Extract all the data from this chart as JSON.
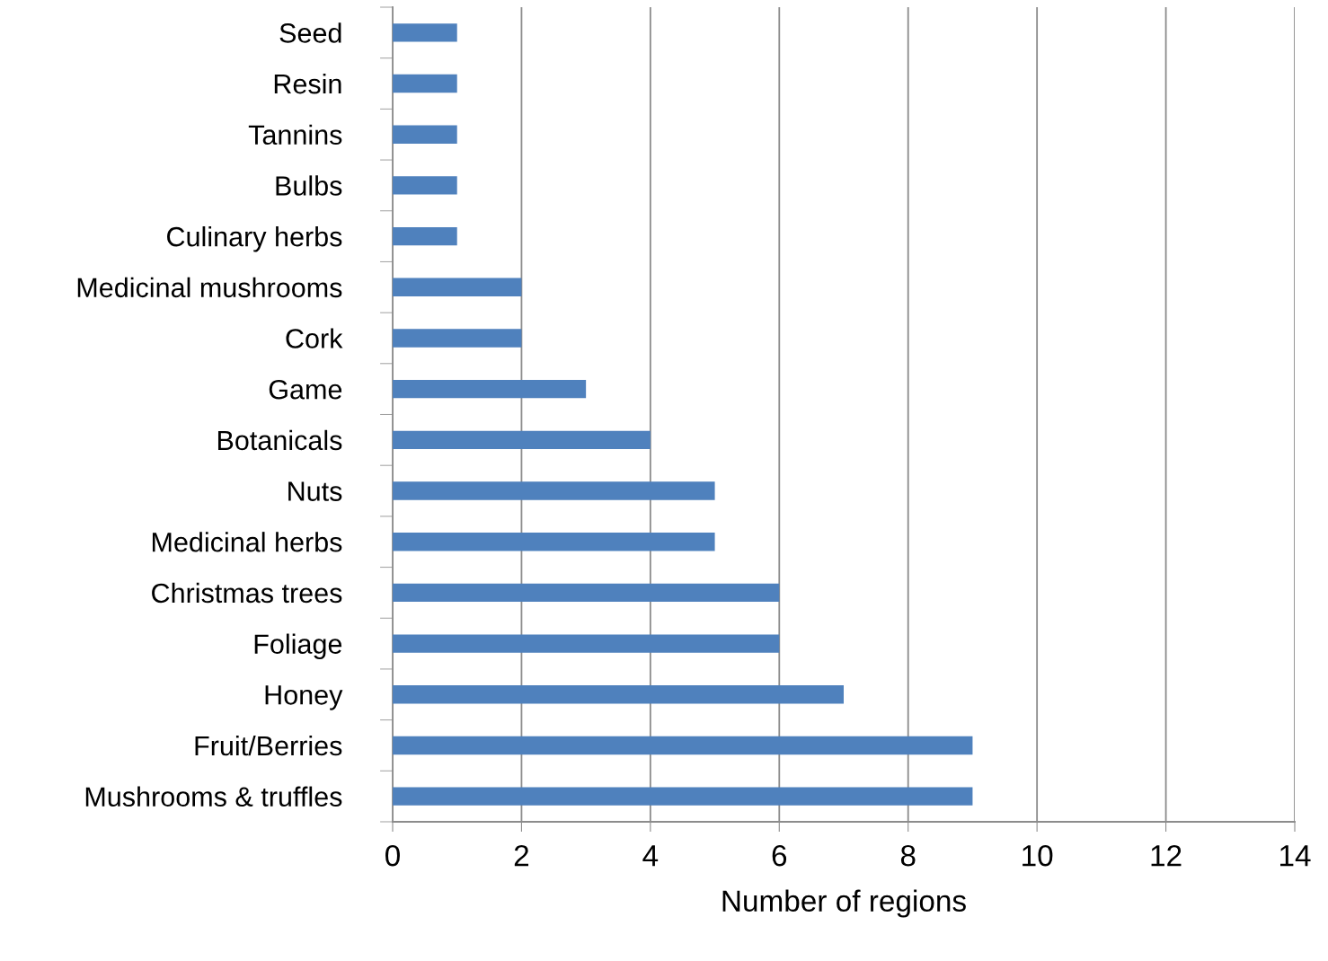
{
  "chart_data": {
    "type": "bar",
    "orientation": "horizontal",
    "xlabel": "Number of regions",
    "categories": [
      "Seed",
      "Resin",
      "Tannins",
      "Bulbs",
      "Culinary herbs",
      "Medicinal mushrooms",
      "Cork",
      "Game",
      "Botanicals",
      "Nuts",
      "Medicinal herbs",
      "Christmas trees",
      "Foliage",
      "Honey",
      "Fruit/Berries",
      "Mushrooms & truffles"
    ],
    "values": [
      1,
      1,
      1,
      1,
      1,
      2,
      2,
      3,
      4,
      5,
      5,
      6,
      6,
      7,
      9,
      9
    ],
    "color": "#4f81bd",
    "xlim": [
      0,
      14
    ],
    "xticks": [
      0,
      2,
      4,
      6,
      8,
      10,
      12,
      14
    ],
    "grid": "x",
    "legend": false
  }
}
